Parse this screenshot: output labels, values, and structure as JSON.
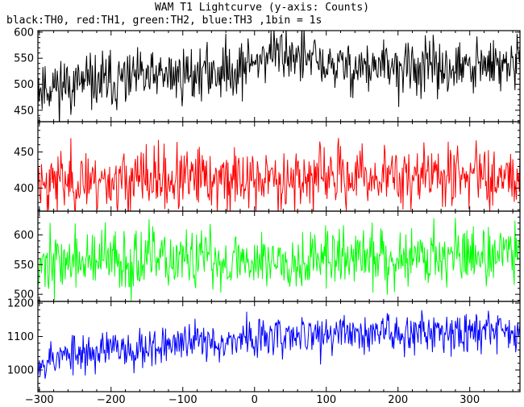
{
  "chart_data": {
    "type": "line",
    "title": "WAM T1 Lightcurve (y-axis: Counts)",
    "subtitle": "black:TH0, red:TH1, green:TH2, blue:TH3 ,1bin = 1s",
    "xlabel": "",
    "ylabel": "",
    "xlim": [
      -302,
      370
    ],
    "x_ticks": [
      -300,
      -200,
      -100,
      0,
      100,
      200,
      300
    ],
    "x_tick_labels": [
      "−300",
      "−200",
      "−100",
      "0",
      "100",
      "200",
      "300"
    ],
    "bin_seconds": 1,
    "grid": false,
    "legend": "none",
    "series": [
      {
        "color": "#000000",
        "ylim": [
          428,
          603
        ],
        "y_ticks": [
          450,
          500,
          550,
          600
        ],
        "y_tick_labels": [
          "450",
          "500",
          "550",
          "600"
        ],
        "trend": [
          [
            -300,
            495
          ],
          [
            -200,
            505
          ],
          [
            -100,
            518
          ],
          [
            -20,
            530
          ],
          [
            0,
            545
          ],
          [
            20,
            560
          ],
          [
            50,
            560
          ],
          [
            80,
            545
          ],
          [
            100,
            535
          ],
          [
            200,
            530
          ],
          [
            300,
            530
          ],
          [
            370,
            540
          ]
        ],
        "noise": 27,
        "seed": 11
      },
      {
        "color": "#ff0000",
        "ylim": [
          368,
          492
        ],
        "y_ticks": [
          400,
          450
        ],
        "y_tick_labels": [
          "400",
          "450"
        ],
        "trend": [
          [
            -300,
            410
          ],
          [
            0,
            412
          ],
          [
            100,
            415
          ],
          [
            370,
            420
          ]
        ],
        "noise": 22,
        "seed": 23
      },
      {
        "color": "#00ff00",
        "ylim": [
          488,
          640
        ],
        "y_ticks": [
          500,
          550,
          600
        ],
        "y_tick_labels": [
          "500",
          "550",
          "600"
        ],
        "trend": [
          [
            -300,
            555
          ],
          [
            0,
            558
          ],
          [
            100,
            560
          ],
          [
            370,
            570
          ]
        ],
        "noise": 26,
        "seed": 37
      },
      {
        "color": "#0000ff",
        "ylim": [
          935,
          1205
        ],
        "y_ticks": [
          1000,
          1100,
          1200
        ],
        "y_tick_labels": [
          "1000",
          "1100",
          "1200"
        ],
        "trend": [
          [
            -300,
            1030
          ],
          [
            -200,
            1060
          ],
          [
            -100,
            1080
          ],
          [
            0,
            1095
          ],
          [
            100,
            1105
          ],
          [
            200,
            1115
          ],
          [
            300,
            1120
          ],
          [
            370,
            1115
          ]
        ],
        "noise": 30,
        "seed": 53
      }
    ]
  }
}
